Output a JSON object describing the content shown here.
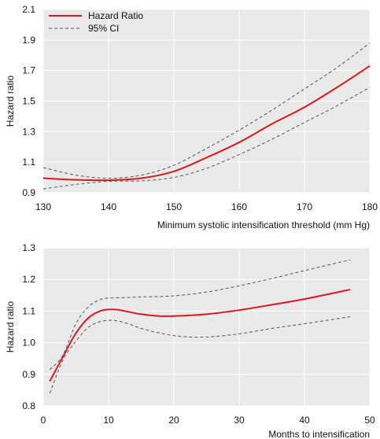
{
  "colors": {
    "panel_bg": "#e9e9e9",
    "grid": "#ffffff",
    "hr_line": "#d7191c",
    "ci_line": "#555555"
  },
  "legend": {
    "hr_label": "Hazard Ratio",
    "ci_label": "95% CI"
  },
  "chart_data": [
    {
      "type": "line",
      "xlabel": "Minimum systolic intensification threshold (mm Hg)",
      "ylabel": "Hazard ratio",
      "xlim": [
        130,
        180
      ],
      "ylim": [
        0.9,
        2.1
      ],
      "xticks": [
        130,
        140,
        150,
        160,
        170,
        180
      ],
      "yticks": [
        0.9,
        1.1,
        1.3,
        1.5,
        1.7,
        1.9,
        2.1
      ],
      "x_tick_labels": [
        "130",
        "140",
        "150",
        "160",
        "170",
        "180"
      ],
      "y_tick_labels": [
        "0.9",
        "1.1",
        "1.3",
        "1.5",
        "1.7",
        "1.9",
        "2.1"
      ],
      "grid": true,
      "legend_position": "top-left",
      "series": [
        {
          "name": "Hazard Ratio",
          "style": "solid",
          "x": [
            130,
            135,
            140,
            145,
            150,
            155,
            160,
            165,
            170,
            175,
            180
          ],
          "y": [
            0.995,
            0.985,
            0.982,
            0.995,
            1.04,
            1.13,
            1.23,
            1.35,
            1.46,
            1.59,
            1.73
          ]
        },
        {
          "name": "95% CI",
          "style": "dashed",
          "x": [
            130,
            135,
            140,
            145,
            150,
            155,
            160,
            165,
            170,
            175,
            180
          ],
          "y": [
            1.065,
            1.015,
            0.995,
            1.015,
            1.08,
            1.19,
            1.31,
            1.44,
            1.58,
            1.72,
            1.88
          ]
        },
        {
          "name": "",
          "style": "dashed",
          "x": [
            130,
            135,
            140,
            145,
            150,
            155,
            160,
            165,
            170,
            175,
            180
          ],
          "y": [
            0.925,
            0.955,
            0.975,
            0.978,
            1.0,
            1.06,
            1.15,
            1.25,
            1.36,
            1.47,
            1.59
          ]
        }
      ]
    },
    {
      "type": "line",
      "xlabel": "Months to intensification",
      "ylabel": "Hazard ratio",
      "xlim": [
        0,
        50
      ],
      "ylim": [
        0.8,
        1.3
      ],
      "xticks": [
        0,
        10,
        20,
        30,
        40,
        50
      ],
      "yticks": [
        0.8,
        0.9,
        1.0,
        1.1,
        1.2,
        1.3
      ],
      "x_tick_labels": [
        "0",
        "10",
        "20",
        "30",
        "40",
        "50"
      ],
      "y_tick_labels": [
        "0.8",
        "0.9",
        "1.0",
        "1.1",
        "1.2",
        "1.3"
      ],
      "grid": true,
      "series": [
        {
          "name": "Hazard Ratio",
          "style": "solid",
          "x": [
            1,
            3,
            5,
            7,
            9,
            11,
            13,
            15,
            18,
            21,
            25,
            30,
            35,
            40,
            47
          ],
          "y": [
            0.878,
            0.955,
            1.03,
            1.08,
            1.102,
            1.105,
            1.098,
            1.09,
            1.084,
            1.085,
            1.09,
            1.103,
            1.12,
            1.138,
            1.168
          ]
        },
        {
          "name": "95% CI",
          "style": "dashed",
          "x": [
            1,
            3,
            5,
            7,
            9,
            11,
            13,
            15,
            18,
            21,
            25,
            30,
            35,
            40,
            47
          ],
          "y": [
            0.915,
            0.96,
            1.06,
            1.115,
            1.138,
            1.142,
            1.143,
            1.145,
            1.146,
            1.15,
            1.16,
            1.18,
            1.203,
            1.228,
            1.262
          ]
        },
        {
          "name": "",
          "style": "dashed",
          "x": [
            1,
            3,
            5,
            7,
            9,
            11,
            13,
            15,
            18,
            21,
            25,
            30,
            35,
            40,
            47
          ],
          "y": [
            0.84,
            0.945,
            1.005,
            1.05,
            1.068,
            1.07,
            1.06,
            1.045,
            1.03,
            1.02,
            1.018,
            1.028,
            1.045,
            1.06,
            1.082
          ]
        }
      ]
    }
  ]
}
